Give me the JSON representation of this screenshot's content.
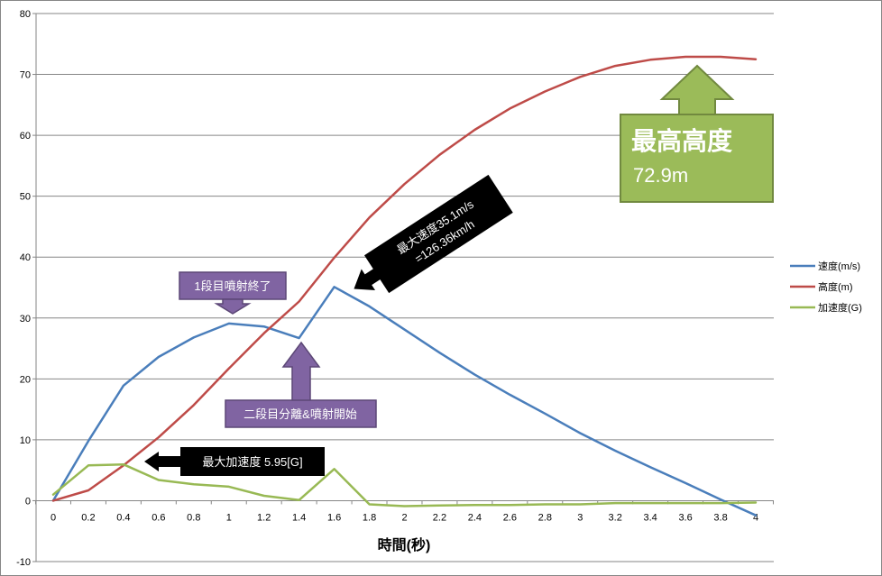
{
  "chart_data": {
    "type": "line",
    "xlabel": "時間(秒)",
    "ylabel": "",
    "x": [
      0,
      0.2,
      0.4,
      0.6,
      0.8,
      1,
      1.2,
      1.4,
      1.6,
      1.8,
      2,
      2.2,
      2.4,
      2.6,
      2.8,
      3,
      3.2,
      3.4,
      3.6,
      3.8,
      4
    ],
    "x_tick_labels": [
      "0",
      "0.2",
      "0.4",
      "0.6",
      "0.8",
      "1",
      "1.2",
      "1.4",
      "1.6",
      "1.8",
      "2",
      "2.2",
      "2.4",
      "2.6",
      "2.8",
      "3",
      "3.2",
      "3.4",
      "3.6",
      "3.8",
      "4"
    ],
    "y_tick_labels": [
      "-10",
      "0",
      "10",
      "20",
      "30",
      "40",
      "50",
      "60",
      "70",
      "80"
    ],
    "ylim": [
      -10,
      80
    ],
    "grid": true,
    "legend_position": "right",
    "series": [
      {
        "name": "速度(m/s)",
        "color": "#4a7ebb",
        "values": [
          0,
          9.8,
          18.9,
          23.6,
          26.8,
          29.1,
          28.6,
          26.7,
          35.1,
          31.9,
          28.1,
          24.3,
          20.7,
          17.4,
          14.3,
          11.1,
          8.2,
          5.5,
          2.9,
          0.2,
          -2.4
        ]
      },
      {
        "name": "高度(m)",
        "color": "#be4b48",
        "values": [
          0,
          1.7,
          5.8,
          10.4,
          15.7,
          21.7,
          27.5,
          32.7,
          39.9,
          46.5,
          52.0,
          56.8,
          60.9,
          64.4,
          67.2,
          69.6,
          71.4,
          72.4,
          72.9,
          72.9,
          72.5
        ]
      },
      {
        "name": "加速度(G)",
        "color": "#98b954",
        "values": [
          1.0,
          5.8,
          5.95,
          3.4,
          2.7,
          2.3,
          0.8,
          0.1,
          5.2,
          -0.6,
          -0.9,
          -0.8,
          -0.7,
          -0.7,
          -0.6,
          -0.6,
          -0.4,
          -0.4,
          -0.4,
          -0.4,
          -0.3
        ]
      }
    ],
    "annotations": [
      {
        "id": "burn1-end",
        "text": "1段目噴射終了"
      },
      {
        "id": "stage2",
        "text": "二段目分離&噴射開始"
      },
      {
        "id": "max-accel",
        "text": "最大加速度 5.95[G]"
      },
      {
        "id": "max-speed",
        "text": "最大速度35.1m/s",
        "text2": "=126.36km/h"
      },
      {
        "id": "max-height",
        "text": "最高高度",
        "text2": "72.9m"
      }
    ]
  }
}
